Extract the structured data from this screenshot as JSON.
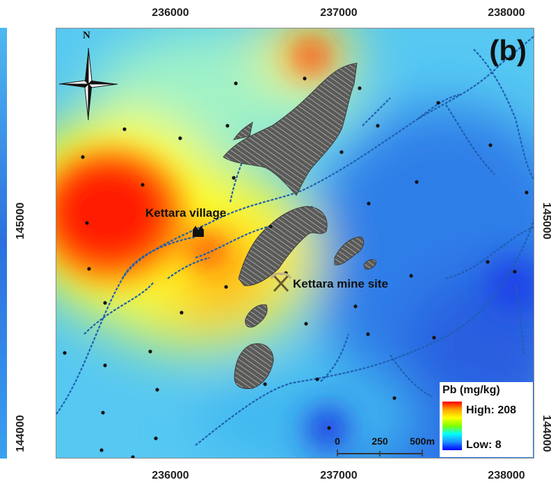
{
  "axes": {
    "top_ticks": [
      "236000",
      "237000",
      "238000"
    ],
    "bottom_ticks": [
      "236000",
      "237000",
      "238000"
    ],
    "left_ticks": [
      "145000",
      "144000"
    ],
    "right_ticks": [
      "145000",
      "144000"
    ]
  },
  "panel_label": "(b)",
  "north_label": "N",
  "places": {
    "village": "Kettara village",
    "mine": "Kettara mine site"
  },
  "legend": {
    "title": "Pb (mg/kg)",
    "high": "High: 208",
    "low": "Low: 8"
  },
  "scale_bar": {
    "labels": [
      "0",
      "250",
      "500m"
    ]
  },
  "colors": {
    "high": "#ff0000",
    "mid": "#ffff00",
    "low": "#0000ff",
    "stream": "#1f5fb0",
    "mine_waste": "#5a5a5a"
  }
}
